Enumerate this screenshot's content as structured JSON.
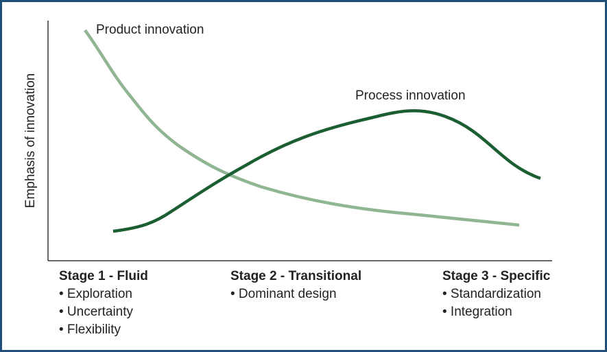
{
  "y_axis_label": "Emphasis of innovation",
  "curves": [
    {
      "label": "Product innovation"
    },
    {
      "label": "Process innovation"
    }
  ],
  "stages": [
    {
      "title": "Stage 1 - Fluid",
      "items": [
        "• Exploration",
        "• Uncertainty",
        "• Flexibility"
      ]
    },
    {
      "title": "Stage 2 - Transitional",
      "items": [
        "• Dominant design"
      ]
    },
    {
      "title": "Stage 3 - Specific",
      "items": [
        "• Standardization",
        "• Integration"
      ]
    }
  ]
}
